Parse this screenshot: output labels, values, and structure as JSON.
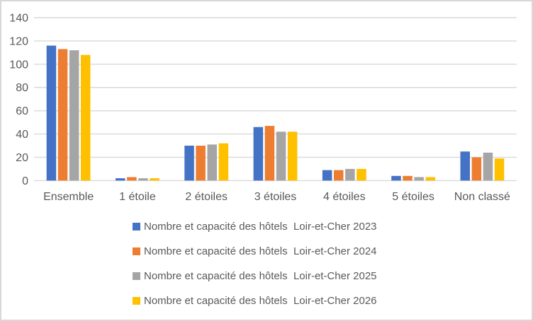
{
  "chart_data": {
    "type": "bar",
    "title": "",
    "xlabel": "",
    "ylabel": "",
    "categories": [
      "Ensemble",
      "1 étoile",
      "2 étoiles",
      "3 étoiles",
      "4 étoiles",
      "5 étoiles",
      "Non classé"
    ],
    "series": [
      {
        "name": "Nombre et capacité des hôtels  Loir-et-Cher 2023",
        "color": "#4472C4",
        "values": [
          116,
          2,
          30,
          46,
          9,
          4,
          25
        ]
      },
      {
        "name": "Nombre et capacité des hôtels  Loir-et-Cher 2024",
        "color": "#ED7D31",
        "values": [
          113,
          3,
          30,
          47,
          9,
          4,
          20
        ]
      },
      {
        "name": "Nombre et capacité des hôtels  Loir-et-Cher 2025",
        "color": "#A5A5A5",
        "values": [
          112,
          2,
          31,
          42,
          10,
          3,
          24
        ]
      },
      {
        "name": "Nombre et capacité des hôtels  Loir-et-Cher 2026",
        "color": "#FFC000",
        "values": [
          108,
          2,
          32,
          42,
          10,
          3,
          19
        ]
      }
    ],
    "ylim": [
      0,
      140
    ],
    "yticks": [
      0,
      20,
      40,
      60,
      80,
      100,
      120,
      140
    ],
    "grid": true,
    "legend_position": "bottom-left",
    "axis_text_color": "#595959",
    "gridline_color": "#D9D9D9",
    "background_color": "#FFFFFF"
  }
}
